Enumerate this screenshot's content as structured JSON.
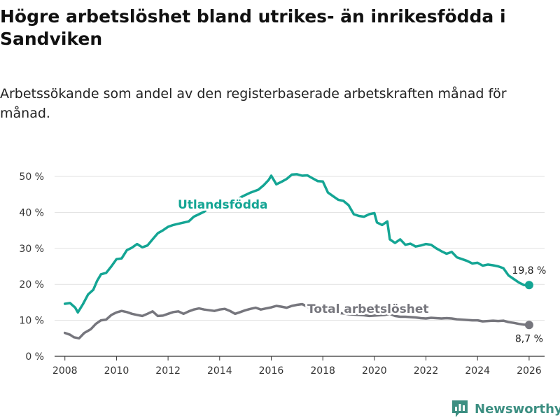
{
  "title": "Högre arbetslöshet bland utrikes- än inrikesfödda i Sandviken",
  "subtitle": "Arbetssökande som andel av den registerbaserade arbetskraften månad för månad.",
  "brand": "Newsworthy",
  "colors": {
    "foreign": "#14a594",
    "total": "#76767d",
    "grid": "#e1e1e1",
    "axis": "#333333",
    "brand": "#3d8f82"
  },
  "chart_data": {
    "type": "line",
    "title": "Högre arbetslöshet bland utrikes- än inrikesfödda i Sandviken",
    "subtitle": "Arbetssökande som andel av den registerbaserade arbetskraften månad för månad.",
    "xlabel": "",
    "ylabel": "",
    "xlim": [
      2007.6,
      2026.6
    ],
    "ylim": [
      0,
      50
    ],
    "y_ticks": [
      0,
      10,
      20,
      30,
      40,
      50
    ],
    "y_tick_labels": [
      "0 %",
      "10 %",
      "20 %",
      "30 %",
      "40 %",
      "50 %"
    ],
    "x_ticks": [
      2008,
      2010,
      2012,
      2014,
      2016,
      2018,
      2020,
      2022,
      2024,
      2026
    ],
    "x_tick_labels": [
      "2008",
      "2010",
      "2012",
      "2014",
      "2016",
      "2018",
      "2020",
      "2022",
      "2024",
      "2026"
    ],
    "grid": true,
    "series": [
      {
        "name": "Utlandsfödda",
        "end_label": "19,8 %",
        "points": [
          [
            2008.0,
            14.6
          ],
          [
            2008.2,
            14.8
          ],
          [
            2008.4,
            13.5
          ],
          [
            2008.5,
            12.2
          ],
          [
            2008.7,
            14.5
          ],
          [
            2008.9,
            17.2
          ],
          [
            2009.1,
            18.5
          ],
          [
            2009.25,
            21.0
          ],
          [
            2009.4,
            22.8
          ],
          [
            2009.6,
            23.2
          ],
          [
            2009.8,
            25.0
          ],
          [
            2010.0,
            27.0
          ],
          [
            2010.2,
            27.2
          ],
          [
            2010.4,
            29.5
          ],
          [
            2010.6,
            30.2
          ],
          [
            2010.8,
            31.2
          ],
          [
            2011.0,
            30.3
          ],
          [
            2011.2,
            30.8
          ],
          [
            2011.4,
            32.5
          ],
          [
            2011.6,
            34.2
          ],
          [
            2011.8,
            35.0
          ],
          [
            2012.0,
            36.0
          ],
          [
            2012.2,
            36.5
          ],
          [
            2012.5,
            37.0
          ],
          [
            2012.8,
            37.5
          ],
          [
            2013.0,
            38.8
          ],
          [
            2013.2,
            39.5
          ],
          [
            2013.4,
            40.2
          ],
          [
            2013.6,
            41.5
          ],
          [
            2013.8,
            42.3
          ],
          [
            2014.0,
            42.0
          ],
          [
            2014.3,
            42.5
          ],
          [
            2014.6,
            43.2
          ],
          [
            2014.9,
            44.5
          ],
          [
            2015.2,
            45.5
          ],
          [
            2015.5,
            46.3
          ],
          [
            2015.7,
            47.5
          ],
          [
            2015.9,
            49.0
          ],
          [
            2016.0,
            50.2
          ],
          [
            2016.2,
            47.8
          ],
          [
            2016.4,
            48.5
          ],
          [
            2016.6,
            49.3
          ],
          [
            2016.8,
            50.5
          ],
          [
            2017.0,
            50.6
          ],
          [
            2017.2,
            50.2
          ],
          [
            2017.4,
            50.3
          ],
          [
            2017.6,
            49.5
          ],
          [
            2017.8,
            48.7
          ],
          [
            2018.0,
            48.6
          ],
          [
            2018.2,
            45.5
          ],
          [
            2018.4,
            44.5
          ],
          [
            2018.6,
            43.5
          ],
          [
            2018.8,
            43.2
          ],
          [
            2019.0,
            42.0
          ],
          [
            2019.2,
            39.5
          ],
          [
            2019.4,
            39.0
          ],
          [
            2019.6,
            38.8
          ],
          [
            2019.8,
            39.5
          ],
          [
            2020.0,
            39.8
          ],
          [
            2020.1,
            37.2
          ],
          [
            2020.3,
            36.5
          ],
          [
            2020.5,
            37.5
          ],
          [
            2020.6,
            32.5
          ],
          [
            2020.8,
            31.5
          ],
          [
            2021.0,
            32.5
          ],
          [
            2021.2,
            31.0
          ],
          [
            2021.4,
            31.3
          ],
          [
            2021.6,
            30.5
          ],
          [
            2021.8,
            30.8
          ],
          [
            2022.0,
            31.2
          ],
          [
            2022.2,
            31.0
          ],
          [
            2022.4,
            30.0
          ],
          [
            2022.6,
            29.2
          ],
          [
            2022.8,
            28.5
          ],
          [
            2023.0,
            29.0
          ],
          [
            2023.2,
            27.5
          ],
          [
            2023.4,
            27.0
          ],
          [
            2023.6,
            26.5
          ],
          [
            2023.8,
            25.8
          ],
          [
            2024.0,
            26.0
          ],
          [
            2024.2,
            25.2
          ],
          [
            2024.4,
            25.5
          ],
          [
            2024.6,
            25.3
          ],
          [
            2024.8,
            25.0
          ],
          [
            2025.0,
            24.5
          ],
          [
            2025.2,
            22.5
          ],
          [
            2025.4,
            21.5
          ],
          [
            2025.6,
            20.5
          ],
          [
            2025.8,
            19.8
          ],
          [
            2026.0,
            19.8
          ]
        ]
      },
      {
        "name": "Total arbetslöshet",
        "end_label": "8,7 %",
        "points": [
          [
            2008.0,
            6.5
          ],
          [
            2008.2,
            6.0
          ],
          [
            2008.35,
            5.3
          ],
          [
            2008.55,
            5.0
          ],
          [
            2008.75,
            6.5
          ],
          [
            2009.0,
            7.5
          ],
          [
            2009.2,
            9.0
          ],
          [
            2009.4,
            10.0
          ],
          [
            2009.6,
            10.2
          ],
          [
            2009.8,
            11.5
          ],
          [
            2010.0,
            12.2
          ],
          [
            2010.2,
            12.6
          ],
          [
            2010.4,
            12.3
          ],
          [
            2010.6,
            11.8
          ],
          [
            2010.8,
            11.5
          ],
          [
            2011.0,
            11.2
          ],
          [
            2011.2,
            11.8
          ],
          [
            2011.4,
            12.5
          ],
          [
            2011.6,
            11.2
          ],
          [
            2011.8,
            11.3
          ],
          [
            2012.0,
            11.8
          ],
          [
            2012.2,
            12.3
          ],
          [
            2012.4,
            12.5
          ],
          [
            2012.6,
            11.8
          ],
          [
            2012.8,
            12.5
          ],
          [
            2013.0,
            13.0
          ],
          [
            2013.2,
            13.3
          ],
          [
            2013.4,
            13.0
          ],
          [
            2013.6,
            12.8
          ],
          [
            2013.8,
            12.6
          ],
          [
            2014.0,
            13.0
          ],
          [
            2014.2,
            13.2
          ],
          [
            2014.4,
            12.6
          ],
          [
            2014.6,
            11.8
          ],
          [
            2014.8,
            12.3
          ],
          [
            2015.0,
            12.8
          ],
          [
            2015.2,
            13.2
          ],
          [
            2015.4,
            13.5
          ],
          [
            2015.6,
            13.0
          ],
          [
            2015.8,
            13.3
          ],
          [
            2016.0,
            13.6
          ],
          [
            2016.2,
            14.0
          ],
          [
            2016.4,
            13.8
          ],
          [
            2016.6,
            13.5
          ],
          [
            2016.8,
            14.0
          ],
          [
            2017.0,
            14.3
          ],
          [
            2017.2,
            14.5
          ],
          [
            2017.4,
            13.8
          ],
          [
            2017.6,
            13.2
          ],
          [
            2017.8,
            13.0
          ],
          [
            2018.0,
            12.6
          ],
          [
            2018.2,
            12.4
          ],
          [
            2018.4,
            12.2
          ],
          [
            2018.6,
            12.0
          ],
          [
            2018.8,
            11.9
          ],
          [
            2019.0,
            11.7
          ],
          [
            2019.2,
            11.6
          ],
          [
            2019.4,
            11.5
          ],
          [
            2019.6,
            11.4
          ],
          [
            2019.8,
            11.2
          ],
          [
            2020.0,
            11.3
          ],
          [
            2020.2,
            11.4
          ],
          [
            2020.4,
            11.5
          ],
          [
            2020.6,
            11.8
          ],
          [
            2020.8,
            11.2
          ],
          [
            2021.0,
            11.0
          ],
          [
            2021.2,
            11.0
          ],
          [
            2021.4,
            10.9
          ],
          [
            2021.6,
            10.8
          ],
          [
            2021.8,
            10.6
          ],
          [
            2022.0,
            10.5
          ],
          [
            2022.2,
            10.7
          ],
          [
            2022.4,
            10.6
          ],
          [
            2022.6,
            10.5
          ],
          [
            2022.8,
            10.6
          ],
          [
            2023.0,
            10.5
          ],
          [
            2023.2,
            10.3
          ],
          [
            2023.4,
            10.2
          ],
          [
            2023.6,
            10.1
          ],
          [
            2023.8,
            10.0
          ],
          [
            2024.0,
            10.0
          ],
          [
            2024.2,
            9.7
          ],
          [
            2024.4,
            9.8
          ],
          [
            2024.6,
            9.9
          ],
          [
            2024.8,
            9.8
          ],
          [
            2025.0,
            9.9
          ],
          [
            2025.2,
            9.5
          ],
          [
            2025.4,
            9.3
          ],
          [
            2025.6,
            9.0
          ],
          [
            2025.8,
            8.8
          ],
          [
            2026.0,
            8.7
          ]
        ]
      }
    ]
  }
}
